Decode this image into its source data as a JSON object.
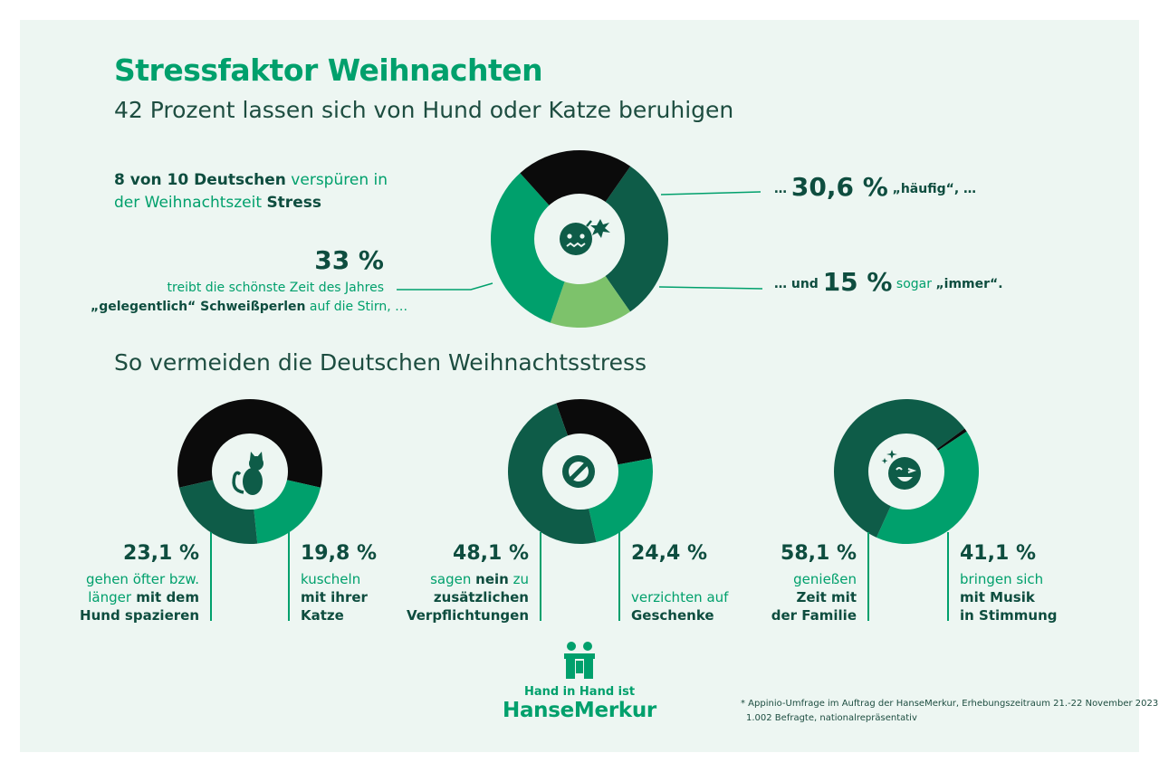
{
  "header": {
    "title": "Stressfaktor Weihnachten",
    "subtitle": "42 Prozent lassen sich von Hund oder Katze beruhigen"
  },
  "intro": {
    "part1": "8 von 10 Deutschen",
    "part2": " verspüren in",
    "part3": "der Weihnachtszeit ",
    "part4": "Stress"
  },
  "stress": {
    "left_value": "33 %",
    "left_line1": "treibt die schönste Zeit des Jahres",
    "left_line2_bold": "„gelegentlich“ Schweißperlen",
    "left_line2_rest": " auf die Stirn, …",
    "right1_prefix": "… ",
    "right1_value": "30,6 %",
    "right1_suffix": " „häufig“, …",
    "right2_prefix": "… und ",
    "right2_value": "15 %",
    "right2_mid": " sogar ",
    "right2_suffix": "„immer“."
  },
  "section2_title": "So vermeiden die Deutschen Weihnachtsstress",
  "avoid": {
    "dog_value": "23,1 %",
    "dog_line1": "gehen öfter bzw.",
    "dog_line2a": "länger",
    "dog_line2b": " mit dem",
    "dog_line3": "Hund spazieren",
    "cat_value": "19,8 %",
    "cat_line1": "kuscheln",
    "cat_line2": "mit ihrer",
    "cat_line3": "Katze",
    "no_value": "48,1 %",
    "no_line1a": "sagen ",
    "no_line1b": "nein",
    "no_line1c": " zu",
    "no_line2": "zusätzlichen",
    "no_line3": "Verpflichtungen",
    "gift_value": "24,4 %",
    "gift_line1": "verzichten auf",
    "gift_line2": "Geschenke",
    "fam_value": "58,1 %",
    "fam_line1": "genießen",
    "fam_line2": "Zeit mit",
    "fam_line3": "der Familie",
    "music_value": "41,1 %",
    "music_line1": "bringen sich",
    "music_line2": "mit Musik",
    "music_line3": "in Stimmung"
  },
  "logo": {
    "tagline": "Hand in Hand ist",
    "brand": "HanseMerkur"
  },
  "footnote": {
    "line1": "* Appinio-Umfrage im Auftrag der HanseMerkur, Erhebungszeitraum 21.-22 November 2023,",
    "line2": "1.002 Befragte, nationalrepräsentativ"
  },
  "colors": {
    "dark_green": "#0e5c48",
    "mid_green": "#00a06c",
    "light_green": "#7dc26b",
    "black": "#0b0b0b",
    "panel": "#edf6f2"
  },
  "chart_data": [
    {
      "type": "pie",
      "segments": [
        {
          "label": "häufig",
          "value": 30.6,
          "color": "#0e5c48"
        },
        {
          "label": "immer",
          "value": 15,
          "color": "#7dc26b"
        },
        {
          "label": "gelegentlich",
          "value": 33,
          "color": "#00a06c"
        },
        {
          "label": "",
          "value": 21.4,
          "color": "#0b0b0b"
        }
      ]
    },
    {
      "type": "pie",
      "segments": [
        {
          "label": "Hund spazieren",
          "value": 23.1,
          "color": "#0e5c48"
        },
        {
          "label": "Katze",
          "value": 19.8,
          "color": "#00a06c"
        },
        {
          "label": "",
          "value": 57.1,
          "color": "#0b0b0b"
        }
      ]
    },
    {
      "type": "pie",
      "segments": [
        {
          "label": "nein zu zusätzlichen Verpflichtungen",
          "value": 48.1,
          "color": "#0e5c48"
        },
        {
          "label": "verzichten auf Geschenke",
          "value": 24.4,
          "color": "#00a06c"
        },
        {
          "label": "",
          "value": 27.5,
          "color": "#0b0b0b"
        }
      ]
    },
    {
      "type": "pie",
      "segments": [
        {
          "label": "Zeit mit der Familie",
          "value": 58.1,
          "color": "#0e5c48"
        },
        {
          "label": "mit Musik in Stimmung",
          "value": 41.1,
          "color": "#00a06c"
        },
        {
          "label": "",
          "value": 0.8,
          "color": "#0b0b0b"
        }
      ]
    }
  ]
}
